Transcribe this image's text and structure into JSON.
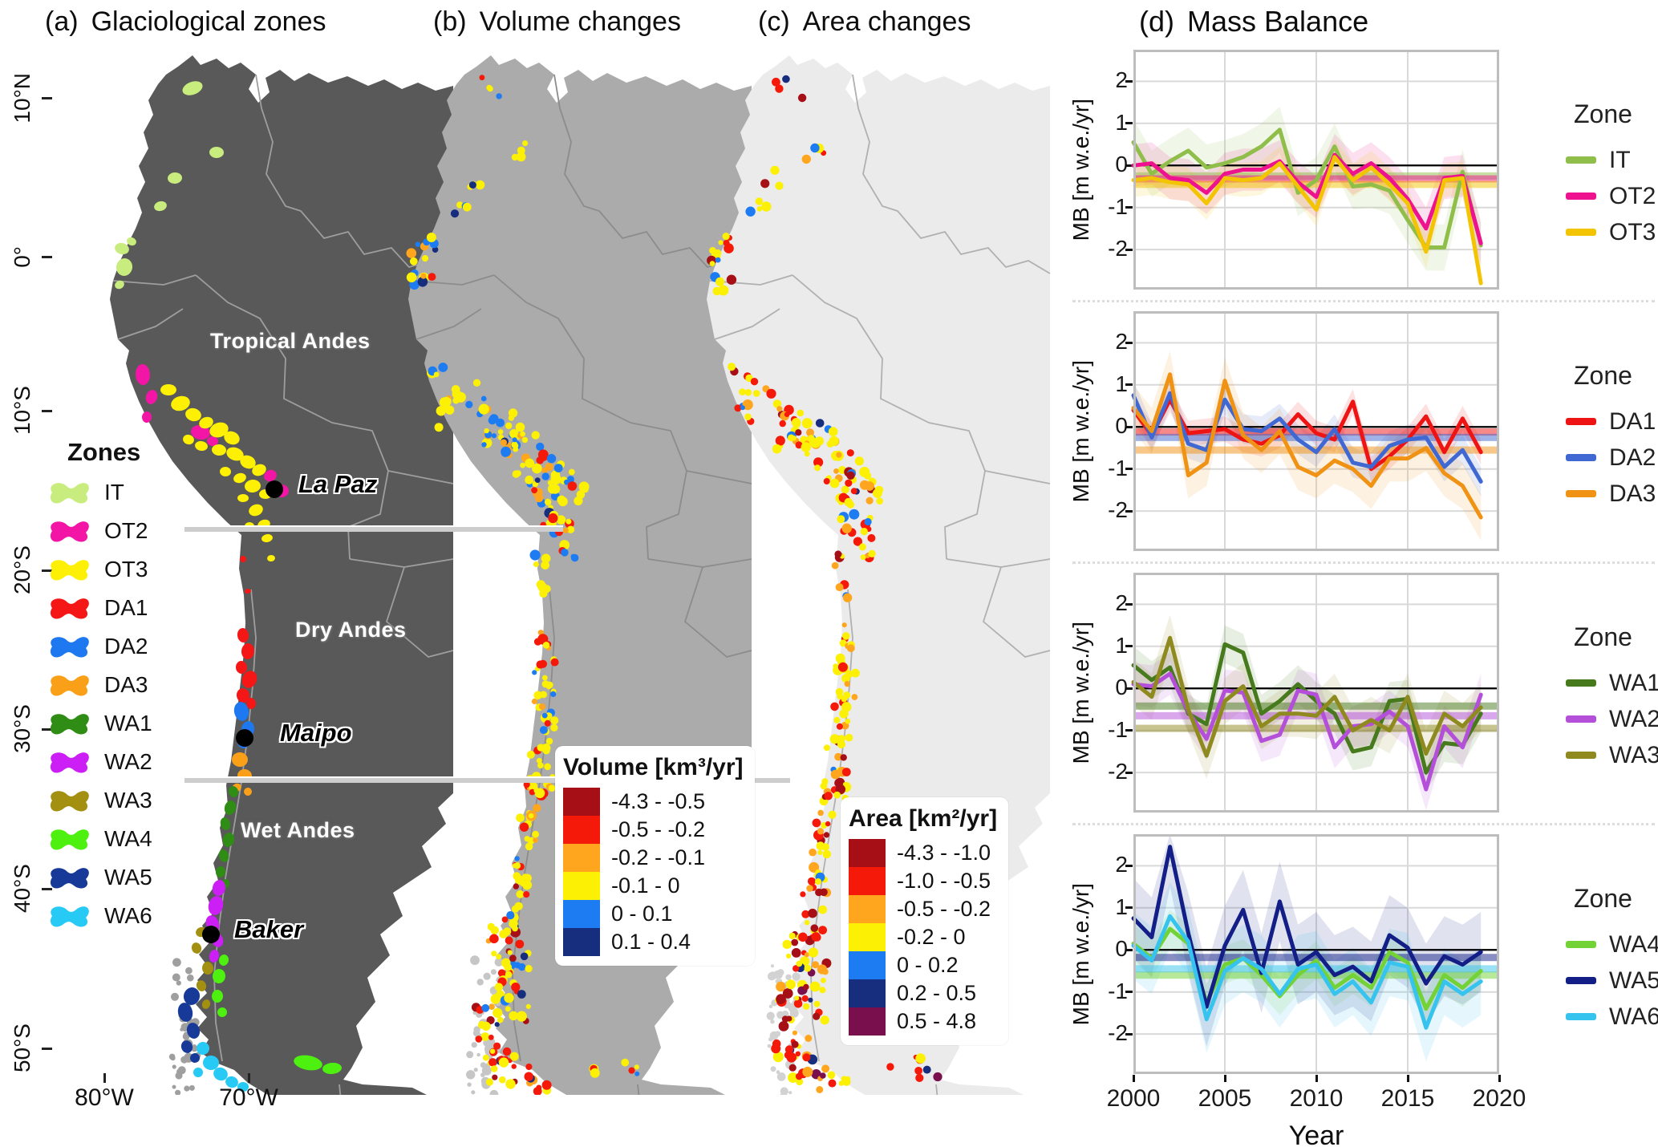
{
  "titles": {
    "a_label": "(a)",
    "a_title": "Glaciological zones",
    "b_label": "(b)",
    "b_title": "Volume changes",
    "c_label": "(c)",
    "c_title": "Area changes",
    "d_label": "(d)",
    "d_title": "Mass Balance"
  },
  "map_a": {
    "lat_ticks": [
      "10°N",
      "0°",
      "10°S",
      "20°S",
      "30°S",
      "40°S",
      "50°S"
    ],
    "lon_ticks": [
      "80°W",
      "70°W"
    ],
    "regions": {
      "tropical": "Tropical Andes",
      "dry": "Dry Andes",
      "wet": "Wet Andes"
    },
    "cities": {
      "la_paz": "La Paz",
      "maipo": "Maipo",
      "baker": "Baker"
    },
    "zones_legend_title": "Zones",
    "zones": [
      {
        "id": "IT",
        "label": "IT",
        "map_color": "#c9ec7e",
        "chart_color": "#8fbe4b"
      },
      {
        "id": "OT2",
        "label": "OT2",
        "map_color": "#f316a6",
        "chart_color": "#ef128e"
      },
      {
        "id": "OT3",
        "label": "OT3",
        "map_color": "#fdf005",
        "chart_color": "#f2c402"
      },
      {
        "id": "DA1",
        "label": "DA1",
        "map_color": "#f51616",
        "chart_color": "#ee1414"
      },
      {
        "id": "DA2",
        "label": "DA2",
        "map_color": "#1e78f0",
        "chart_color": "#4068d2"
      },
      {
        "id": "DA3",
        "label": "DA3",
        "map_color": "#faa018",
        "chart_color": "#f09214"
      },
      {
        "id": "WA1",
        "label": "WA1",
        "map_color": "#2f8c14",
        "chart_color": "#47791d"
      },
      {
        "id": "WA2",
        "label": "WA2",
        "map_color": "#cb1ff5",
        "chart_color": "#b44fd9"
      },
      {
        "id": "WA3",
        "label": "WA3",
        "map_color": "#a38f10",
        "chart_color": "#8f8a20"
      },
      {
        "id": "WA4",
        "label": "WA4",
        "map_color": "#4ef010",
        "chart_color": "#72d236"
      },
      {
        "id": "WA5",
        "label": "WA5",
        "map_color": "#173a99",
        "chart_color": "#131f87"
      },
      {
        "id": "WA6",
        "label": "WA6",
        "map_color": "#27c9f5",
        "chart_color": "#36c3ee"
      }
    ]
  },
  "volume_legend": {
    "title": "Volume [km³/yr]",
    "items": [
      {
        "range": "-4.3 - -0.5",
        "color": "#a50f15"
      },
      {
        "range": "-0.5 - -0.2",
        "color": "#f41909"
      },
      {
        "range": "-0.2 - -0.1",
        "color": "#ffa51e"
      },
      {
        "range": "-0.1 - 0",
        "color": "#fcf005"
      },
      {
        "range": "0 - 0.1",
        "color": "#1d7cf2"
      },
      {
        "range": "0.1 - 0.4",
        "color": "#172d7d"
      }
    ]
  },
  "area_legend": {
    "title": "Area [km²/yr]",
    "items": [
      {
        "range": "-4.3 - -1.0",
        "color": "#a50f15"
      },
      {
        "range": "-1.0 - -0.5",
        "color": "#f41909"
      },
      {
        "range": "-0.5 - -0.2",
        "color": "#ffa51e"
      },
      {
        "range": "-0.2 - 0",
        "color": "#fcf005"
      },
      {
        "range": "0 - 0.2",
        "color": "#1d7cf2"
      },
      {
        "range": "0.2 - 0.5",
        "color": "#172d7d"
      },
      {
        "range": "0.5 - 4.8",
        "color": "#7a0f4d"
      }
    ]
  },
  "chart_data": [
    {
      "type": "line",
      "legend_title": "Zone",
      "ylabel": "MB [m w.e./yr]",
      "x": [
        2000,
        2001,
        2002,
        2003,
        2004,
        2005,
        2006,
        2007,
        2008,
        2009,
        2010,
        2011,
        2012,
        2013,
        2014,
        2015,
        2016,
        2017,
        2018,
        2019
      ],
      "xticks": [
        2000,
        2005,
        2010,
        2015,
        2020
      ],
      "yticks": [
        2,
        1,
        0,
        -1,
        -2
      ],
      "ylim": [
        -2.95,
        2.75
      ],
      "series": [
        {
          "name": "IT",
          "color": "#8fbe4b",
          "mean": -0.25,
          "band": 0.55,
          "values": [
            0.55,
            -0.2,
            0.1,
            0.35,
            -0.05,
            0.05,
            0.2,
            0.45,
            0.85,
            -0.65,
            -0.35,
            0.45,
            -0.5,
            -0.45,
            -0.6,
            -1.3,
            -1.95,
            -1.95,
            -0.15,
            -1.9
          ]
        },
        {
          "name": "OT2",
          "color": "#ef128e",
          "mean": -0.32,
          "band": 0.5,
          "values": [
            0.0,
            0.05,
            -0.3,
            -0.35,
            -0.65,
            -0.2,
            -0.1,
            -0.1,
            0.1,
            -0.4,
            -0.75,
            0.25,
            -0.2,
            0.05,
            -0.3,
            -0.8,
            -1.5,
            -0.3,
            -0.25,
            -1.85
          ]
        },
        {
          "name": "OT3",
          "color": "#f2c402",
          "mean": -0.45,
          "band": 0.4,
          "values": [
            -0.35,
            -0.3,
            -0.4,
            -0.45,
            -0.9,
            -0.3,
            -0.35,
            -0.3,
            0.05,
            -0.5,
            -1.05,
            0.2,
            -0.35,
            -0.05,
            -0.45,
            -0.9,
            -2.05,
            -0.35,
            -0.3,
            -2.8
          ]
        }
      ]
    },
    {
      "type": "line",
      "legend_title": "Zone",
      "ylabel": "MB [m w.e./yr]",
      "x": [
        2000,
        2001,
        2002,
        2003,
        2004,
        2005,
        2006,
        2007,
        2008,
        2009,
        2010,
        2011,
        2012,
        2013,
        2014,
        2015,
        2016,
        2017,
        2018,
        2019
      ],
      "xticks": [
        2000,
        2005,
        2010,
        2015,
        2020
      ],
      "yticks": [
        2,
        1,
        0,
        -1,
        -2
      ],
      "ylim": [
        -2.95,
        2.75
      ],
      "series": [
        {
          "name": "DA1",
          "color": "#ee1414",
          "mean": -0.12,
          "band": 0.3,
          "values": [
            0.4,
            -0.2,
            0.65,
            -0.15,
            -0.1,
            -0.05,
            -0.3,
            -0.4,
            -0.2,
            0.3,
            -0.15,
            -0.3,
            0.6,
            -1.0,
            -0.7,
            -0.3,
            0.25,
            -0.6,
            0.2,
            -0.6
          ]
        },
        {
          "name": "DA2",
          "color": "#4068d2",
          "mean": -0.25,
          "band": 0.35,
          "values": [
            0.75,
            -0.25,
            0.8,
            -0.4,
            -0.55,
            0.65,
            -0.05,
            -0.1,
            0.2,
            -0.3,
            -0.6,
            -0.05,
            -0.85,
            -0.95,
            -0.45,
            -0.3,
            -0.25,
            -0.95,
            -0.55,
            -1.3
          ]
        },
        {
          "name": "DA3",
          "color": "#f09214",
          "mean": -0.55,
          "band": 0.55,
          "values": [
            0.45,
            -0.1,
            1.25,
            -1.15,
            -0.85,
            1.1,
            -0.2,
            -0.55,
            -0.1,
            -0.95,
            -1.15,
            -0.8,
            -1.0,
            -1.4,
            -0.75,
            -0.75,
            -0.5,
            -1.1,
            -1.4,
            -2.15
          ]
        }
      ]
    },
    {
      "type": "line",
      "legend_title": "Zone",
      "ylabel": "MB [m w.e./yr]",
      "x": [
        2000,
        2001,
        2002,
        2003,
        2004,
        2005,
        2006,
        2007,
        2008,
        2009,
        2010,
        2011,
        2012,
        2013,
        2014,
        2015,
        2016,
        2017,
        2018,
        2019
      ],
      "xticks": [
        2000,
        2005,
        2010,
        2015,
        2020
      ],
      "yticks": [
        2,
        1,
        0,
        -1,
        -2
      ],
      "ylim": [
        -2.95,
        2.75
      ],
      "series": [
        {
          "name": "WA1",
          "color": "#47791d",
          "mean": -0.42,
          "band": 0.45,
          "values": [
            0.55,
            0.2,
            0.5,
            -0.6,
            -0.85,
            1.05,
            0.85,
            -0.6,
            -0.3,
            0.1,
            -0.3,
            -0.6,
            -1.5,
            -1.4,
            -0.3,
            -0.25,
            -2.0,
            -1.3,
            -1.35,
            -0.6
          ]
        },
        {
          "name": "WA2",
          "color": "#b44fd9",
          "mean": -0.65,
          "band": 0.5,
          "values": [
            0.1,
            0.05,
            0.35,
            -0.55,
            -1.2,
            -0.05,
            -0.1,
            -1.25,
            -1.1,
            -0.05,
            -0.15,
            -1.4,
            -0.9,
            -0.85,
            -0.55,
            -0.9,
            -2.4,
            -0.9,
            -1.4,
            -0.15
          ]
        },
        {
          "name": "WA3",
          "color": "#8f8a20",
          "mean": -0.95,
          "band": 0.55,
          "values": [
            0.15,
            -0.2,
            1.2,
            -0.5,
            -1.6,
            -0.3,
            0.05,
            -0.9,
            -0.6,
            -0.6,
            -0.65,
            -0.2,
            -1.0,
            -0.75,
            -1.0,
            -0.2,
            -1.55,
            -0.6,
            -0.9,
            -0.45
          ]
        }
      ]
    },
    {
      "type": "line",
      "legend_title": "Zone",
      "ylabel": "MB [m w.e./yr]",
      "xlabel": "Year",
      "x": [
        2000,
        2001,
        2002,
        2003,
        2004,
        2005,
        2006,
        2007,
        2008,
        2009,
        2010,
        2011,
        2012,
        2013,
        2014,
        2015,
        2016,
        2017,
        2018,
        2019
      ],
      "xticks": [
        2000,
        2005,
        2010,
        2015,
        2020
      ],
      "yticks": [
        2,
        1,
        0,
        -1,
        -2
      ],
      "ylim": [
        -2.95,
        2.75
      ],
      "series": [
        {
          "name": "WA4",
          "color": "#72d236",
          "mean": -0.6,
          "band": 0.45,
          "values": [
            0.15,
            -0.2,
            0.5,
            0.15,
            -1.25,
            -0.35,
            -0.2,
            -0.6,
            -1.1,
            -0.6,
            -0.25,
            -0.9,
            -0.6,
            -0.9,
            -0.05,
            -0.3,
            -1.4,
            -0.6,
            -0.9,
            -0.5
          ]
        },
        {
          "name": "WA5",
          "color": "#131f87",
          "mean": -0.18,
          "band": 0.95,
          "values": [
            0.75,
            0.3,
            2.45,
            0.4,
            -1.35,
            0.1,
            0.95,
            -0.55,
            1.15,
            -0.35,
            -0.05,
            -0.6,
            -0.4,
            -0.75,
            0.35,
            0.05,
            -0.8,
            -0.15,
            -0.35,
            -0.05
          ]
        },
        {
          "name": "WA6",
          "color": "#36c3ee",
          "mean": -0.45,
          "band": 0.8,
          "values": [
            0.1,
            -0.25,
            0.8,
            0.2,
            -1.65,
            -0.5,
            -0.2,
            -0.45,
            -1.05,
            -0.45,
            -0.35,
            -1.05,
            -0.75,
            -1.25,
            -0.3,
            -0.4,
            -1.85,
            -0.75,
            -1.05,
            -0.75
          ]
        }
      ]
    }
  ],
  "colors": {
    "map_a_land": "#595959",
    "map_a_border": "#9e9e9e",
    "map_b_land": "#ababab",
    "map_b_border": "#8c8c8c",
    "map_c_land": "#ebebeb",
    "map_c_border": "#b0b0b0",
    "zone_divider": "#cdcdcd",
    "grid": "#d9d9d9",
    "plot_border": "#bdbdbd",
    "zero_line": "#000000"
  }
}
